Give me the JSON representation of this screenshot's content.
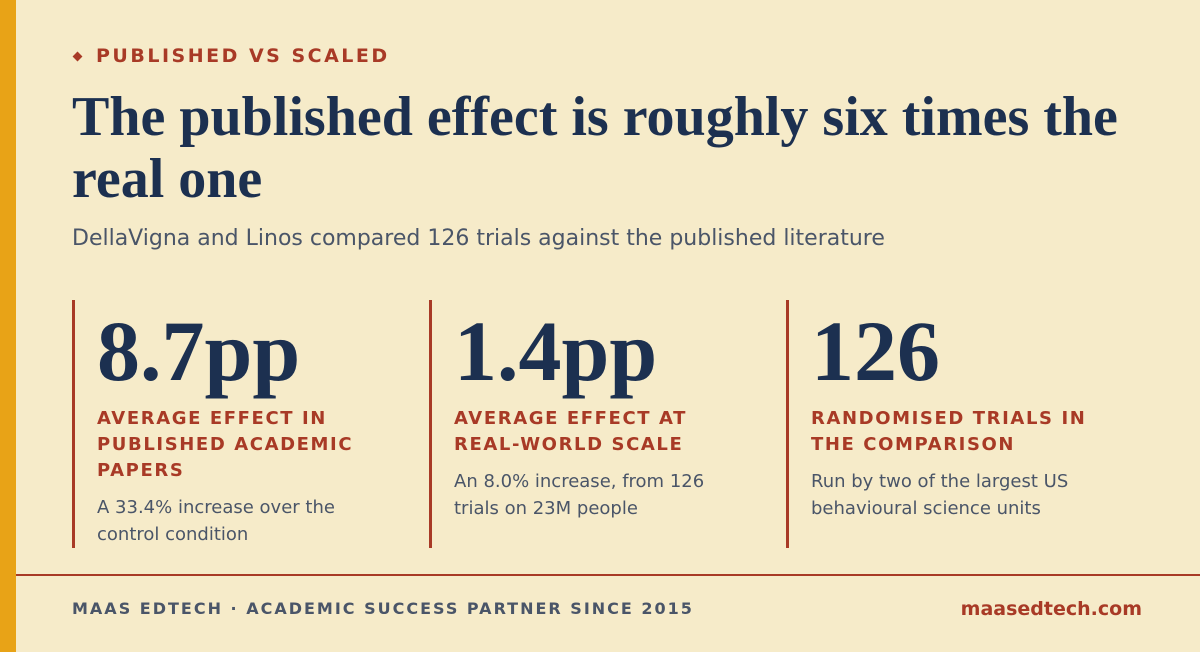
{
  "header": {
    "eyebrow": "PUBLISHED VS SCALED",
    "title": "The published effect is roughly six times the real one",
    "subtitle": "DellaVigna and Linos compared 126 trials against the published literature"
  },
  "stats": [
    {
      "value": "8.7pp",
      "label": "AVERAGE EFFECT IN PUBLISHED ACADEMIC PAPERS",
      "note": "A 33.4% increase over the control condition"
    },
    {
      "value": "1.4pp",
      "label": "AVERAGE EFFECT AT REAL-WORLD SCALE",
      "note": "An 8.0% increase, from 126 trials on 23M people"
    },
    {
      "value": "126",
      "label": "RANDOMISED TRIALS IN THE COMPARISON",
      "note": "Run by two of the largest US behavioural science units"
    }
  ],
  "footer": {
    "brand": "MAAS EDTECH · ACADEMIC SUCCESS PARTNER SINCE 2015",
    "url": "maasedtech.com"
  }
}
